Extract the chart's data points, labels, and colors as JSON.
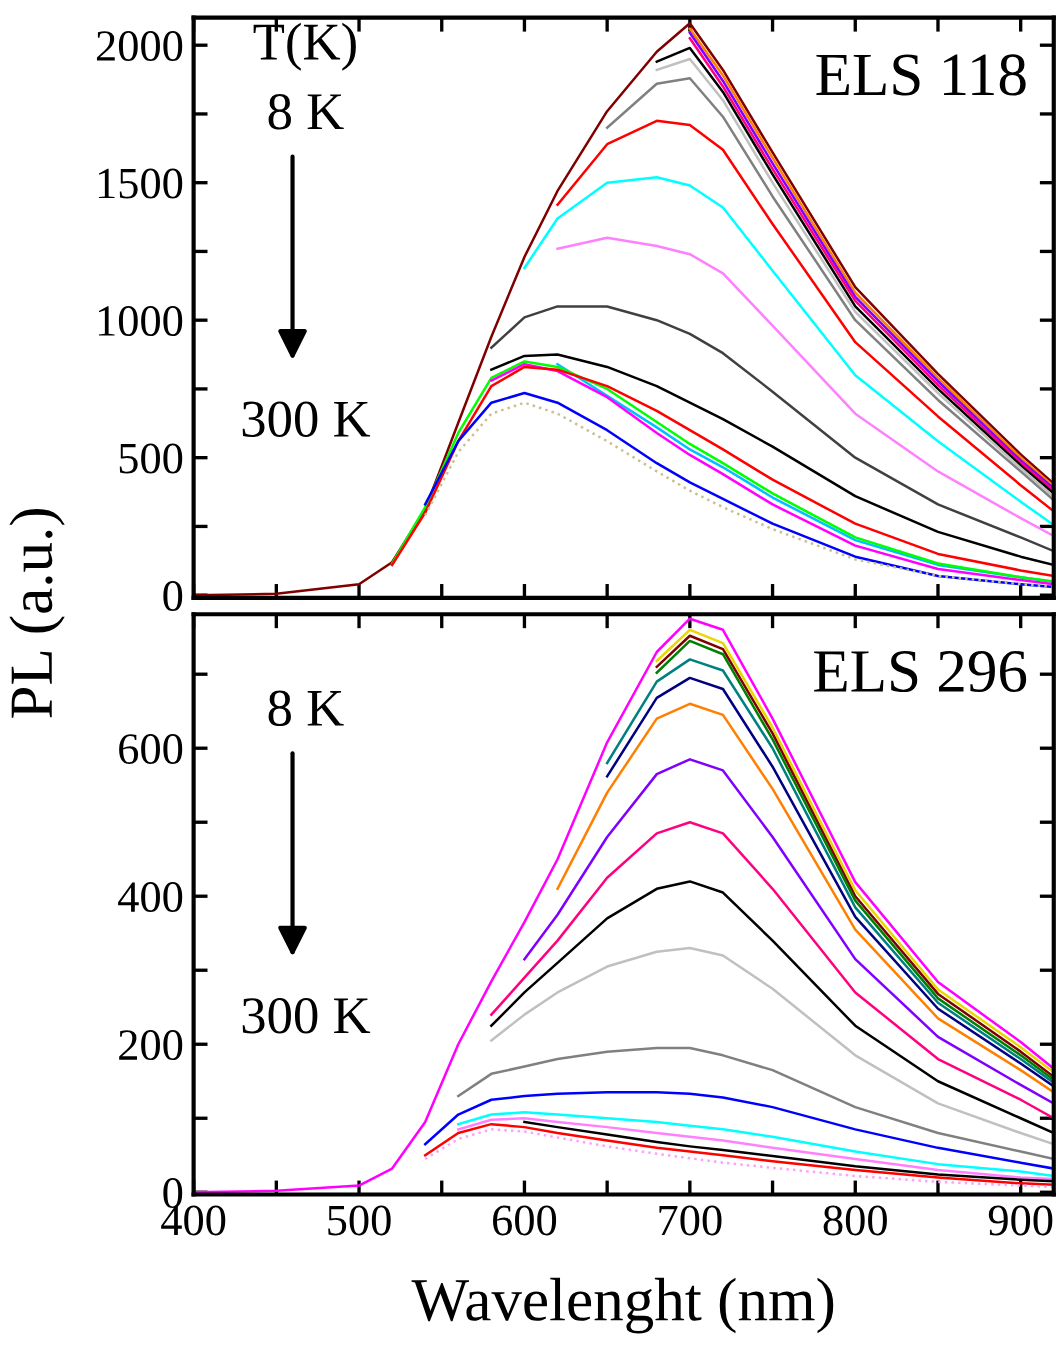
{
  "chart_data": [
    {
      "type": "line",
      "ylabel": "PL (a.u.)",
      "xlim": [
        400,
        920
      ],
      "ylim": [
        -10,
        2100
      ],
      "xticks": [
        400,
        {
          "value": 450,
          "label": null
        },
        500,
        {
          "value": 550,
          "label": null
        },
        600,
        {
          "value": 650,
          "label": null
        },
        700,
        {
          "value": 750,
          "label": null
        },
        800,
        {
          "value": 850,
          "label": null
        },
        900
      ],
      "yticks": [
        0,
        {
          "value": 250,
          "label": null
        },
        500,
        {
          "value": 750,
          "label": null
        },
        1000,
        {
          "value": 1250,
          "label": null
        },
        1500,
        {
          "value": 1750,
          "label": null
        },
        2000
      ],
      "tick_labels": "y",
      "marker": "none",
      "line_style": "solid",
      "annotations": [
        "T(K)",
        "8 K",
        "300 K",
        "ELS 118"
      ],
      "x": [
        400,
        450,
        500,
        520,
        540,
        560,
        580,
        600,
        620,
        650,
        680,
        700,
        720,
        750,
        800,
        850,
        900,
        920
      ],
      "series": [
        {
          "color": "#800000",
          "values": [
            0,
            5,
            40,
            120,
            313,
            627,
            940,
            1230,
            1470,
            1760,
            1976,
            2080,
            1910,
            1610,
            1120,
            805,
            512,
            405
          ]
        },
        {
          "color": "#ff8000",
          "values": [
            null,
            null,
            null,
            null,
            null,
            null,
            null,
            null,
            null,
            null,
            null,
            2060,
            1890,
            1590,
            1100,
            790,
            500,
            395
          ]
        },
        {
          "color": "#8000ff",
          "values": [
            null,
            null,
            null,
            null,
            null,
            null,
            null,
            null,
            null,
            null,
            null,
            2045,
            1870,
            1570,
            1085,
            778,
            490,
            388
          ]
        },
        {
          "color": "#ff0080",
          "values": [
            null,
            null,
            null,
            null,
            null,
            null,
            null,
            null,
            null,
            null,
            null,
            2025,
            1850,
            1550,
            1070,
            765,
            482,
            380
          ]
        },
        {
          "color": "#000000",
          "values": [
            null,
            null,
            null,
            null,
            null,
            null,
            null,
            null,
            null,
            null,
            1940,
            1990,
            1830,
            1530,
            1050,
            750,
            472,
            370
          ]
        },
        {
          "color": "#c0c0c0",
          "values": [
            null,
            null,
            null,
            null,
            null,
            null,
            null,
            null,
            null,
            null,
            1910,
            1950,
            1800,
            1500,
            1030,
            735,
            462,
            358
          ]
        },
        {
          "color": "#808080",
          "values": [
            null,
            null,
            null,
            null,
            null,
            null,
            null,
            null,
            null,
            1700,
            1860,
            1880,
            1740,
            1450,
            1000,
            710,
            450,
            345
          ]
        },
        {
          "color": "#ff0000",
          "values": [
            null,
            null,
            null,
            null,
            null,
            null,
            null,
            null,
            1420,
            1640,
            1725,
            1710,
            1620,
            1350,
            920,
            650,
            400,
            305
          ]
        },
        {
          "color": "#00ffff",
          "values": [
            null,
            null,
            null,
            null,
            null,
            null,
            null,
            1190,
            1370,
            1500,
            1520,
            1490,
            1410,
            1180,
            800,
            560,
            340,
            255
          ]
        },
        {
          "color": "#ff80ff",
          "values": [
            null,
            null,
            null,
            null,
            null,
            null,
            null,
            null,
            1260,
            1300,
            1270,
            1240,
            1170,
            980,
            660,
            450,
            280,
            215
          ]
        },
        {
          "color": "#404040",
          "values": [
            null,
            null,
            null,
            null,
            null,
            null,
            900,
            1010,
            1050,
            1050,
            1000,
            950,
            880,
            740,
            500,
            330,
            210,
            160
          ]
        },
        {
          "color": "#000000",
          "values": [
            null,
            null,
            null,
            null,
            null,
            null,
            820,
            870,
            875,
            830,
            760,
            700,
            640,
            540,
            360,
            230,
            140,
            110
          ]
        },
        {
          "color": "#00c0ff",
          "values": [
            null,
            null,
            null,
            null,
            null,
            null,
            null,
            null,
            840,
            725,
            610,
            530,
            465,
            355,
            200,
            110,
            65,
            48
          ]
        },
        {
          "color": "#00ff00",
          "values": [
            null,
            null,
            null,
            115,
            320,
            590,
            790,
            850,
            830,
            750,
            630,
            550,
            480,
            370,
            210,
            115,
            65,
            50
          ]
        },
        {
          "color": "#ff00ff",
          "values": [
            null,
            null,
            null,
            null,
            null,
            null,
            780,
            840,
            815,
            720,
            590,
            510,
            440,
            330,
            180,
            95,
            55,
            40
          ]
        },
        {
          "color": "#ff0000",
          "values": [
            null,
            null,
            null,
            110,
            300,
            560,
            760,
            830,
            820,
            760,
            670,
            600,
            530,
            420,
            260,
            150,
            90,
            70
          ]
        },
        {
          "color": "#0000ff",
          "values": [
            null,
            null,
            null,
            null,
            330,
            560,
            700,
            735,
            700,
            600,
            480,
            410,
            350,
            260,
            140,
            70,
            40,
            30
          ]
        },
        {
          "color": "#c8c090",
          "line_style": "dotted",
          "values": [
            null,
            null,
            null,
            null,
            290,
            520,
            660,
            700,
            660,
            560,
            450,
            380,
            320,
            240,
            130,
            70,
            40,
            30
          ]
        }
      ]
    },
    {
      "type": "line",
      "xlabel": "Wavelenght (nm)",
      "xlim": [
        400,
        920
      ],
      "ylim": [
        -3,
        781
      ],
      "xticks": [
        400,
        {
          "value": 450,
          "label": null
        },
        500,
        {
          "value": 550,
          "label": null
        },
        600,
        {
          "value": 650,
          "label": null
        },
        700,
        {
          "value": 750,
          "label": null
        },
        800,
        {
          "value": 850,
          "label": null
        },
        900
      ],
      "yticks": [
        0,
        {
          "value": 100,
          "label": null
        },
        200,
        {
          "value": 300,
          "label": null
        },
        400,
        {
          "value": 500,
          "label": null
        },
        600,
        {
          "value": 700,
          "label": null
        }
      ],
      "marker": "none",
      "line_style": "solid",
      "annotations": [
        "8 K",
        "300 K",
        "ELS 296"
      ],
      "x": [
        400,
        450,
        500,
        520,
        540,
        560,
        580,
        600,
        620,
        650,
        680,
        700,
        720,
        750,
        800,
        850,
        900,
        920
      ],
      "series": [
        {
          "color": "#ff00ff",
          "values": [
            0,
            2,
            9,
            32,
            95,
            200,
            285,
            365,
            450,
            608,
            730,
            775,
            760,
            640,
            419,
            284,
            203,
            167
          ]
        },
        {
          "color": "#e8d800",
          "values": [
            null,
            null,
            null,
            null,
            null,
            null,
            null,
            null,
            null,
            null,
            718,
            760,
            742,
            628,
            408,
            274,
            196,
            162
          ]
        },
        {
          "color": "#800000",
          "values": [
            null,
            null,
            null,
            null,
            null,
            null,
            null,
            null,
            null,
            null,
            710,
            752,
            734,
            620,
            400,
            268,
            190,
            156
          ]
        },
        {
          "color": "#008000",
          "values": [
            null,
            null,
            null,
            null,
            null,
            null,
            null,
            null,
            null,
            null,
            702,
            745,
            727,
            612,
            394,
            262,
            185,
            152
          ]
        },
        {
          "color": "#008080",
          "values": [
            null,
            null,
            null,
            null,
            null,
            null,
            null,
            null,
            null,
            580,
            690,
            720,
            705,
            600,
            385,
            256,
            180,
            148
          ]
        },
        {
          "color": "#000080",
          "values": [
            null,
            null,
            null,
            null,
            null,
            null,
            null,
            null,
            null,
            562,
            668,
            695,
            680,
            575,
            372,
            248,
            174,
            143
          ]
        },
        {
          "color": "#ff8000",
          "values": [
            null,
            null,
            null,
            null,
            null,
            null,
            null,
            null,
            410,
            540,
            640,
            660,
            645,
            545,
            355,
            235,
            165,
            135
          ]
        },
        {
          "color": "#8000ff",
          "values": [
            null,
            null,
            null,
            null,
            null,
            null,
            null,
            315,
            375,
            480,
            565,
            585,
            570,
            480,
            315,
            210,
            145,
            120
          ]
        },
        {
          "color": "#ff0080",
          "values": [
            null,
            null,
            null,
            null,
            null,
            null,
            240,
            290,
            340,
            425,
            485,
            500,
            485,
            410,
            270,
            180,
            125,
            100
          ]
        },
        {
          "color": "#000000",
          "values": [
            null,
            null,
            null,
            null,
            null,
            null,
            225,
            270,
            310,
            370,
            410,
            420,
            405,
            340,
            225,
            150,
            100,
            80
          ]
        },
        {
          "color": "#c0c0c0",
          "values": [
            null,
            null,
            null,
            null,
            null,
            null,
            205,
            240,
            270,
            305,
            325,
            330,
            320,
            275,
            185,
            120,
            80,
            65
          ]
        },
        {
          "color": "#808080",
          "values": [
            null,
            null,
            null,
            null,
            null,
            130,
            160,
            170,
            180,
            190,
            195,
            195,
            185,
            165,
            115,
            80,
            55,
            45
          ]
        },
        {
          "color": "#0000ff",
          "values": [
            null,
            null,
            null,
            null,
            65,
            105,
            125,
            130,
            133,
            135,
            135,
            133,
            128,
            115,
            85,
            60,
            40,
            32
          ]
        },
        {
          "color": "#00ffff",
          "values": [
            null,
            null,
            null,
            null,
            null,
            92,
            105,
            108,
            105,
            100,
            95,
            90,
            85,
            75,
            55,
            38,
            28,
            22
          ]
        },
        {
          "color": "#ff80ff",
          "values": [
            null,
            null,
            null,
            null,
            null,
            85,
            98,
            100,
            95,
            88,
            80,
            75,
            70,
            60,
            45,
            30,
            20,
            18
          ]
        },
        {
          "color": "#000000",
          "values": [
            null,
            null,
            null,
            null,
            null,
            null,
            null,
            95,
            88,
            78,
            68,
            62,
            57,
            49,
            35,
            24,
            17,
            15
          ]
        },
        {
          "color": "#ff0000",
          "values": [
            null,
            null,
            null,
            null,
            50,
            80,
            92,
            88,
            80,
            70,
            60,
            55,
            50,
            42,
            30,
            20,
            12,
            10
          ]
        },
        {
          "color": "#ffa0ff",
          "line_style": "dotted",
          "values": [
            null,
            null,
            null,
            null,
            45,
            72,
            85,
            82,
            74,
            62,
            52,
            46,
            40,
            33,
            22,
            14,
            9,
            7
          ]
        }
      ]
    }
  ]
}
